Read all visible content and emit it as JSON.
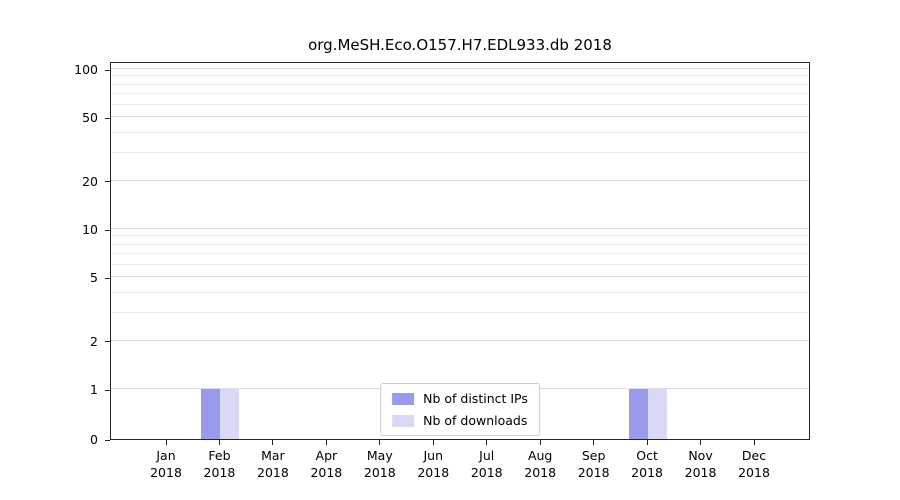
{
  "chart_data": {
    "type": "bar",
    "title": "org.MeSH.Eco.O157.H7.EDL933.db 2018",
    "categories": [
      "Jan",
      "Feb",
      "Mar",
      "Apr",
      "May",
      "Jun",
      "Jul",
      "Aug",
      "Sep",
      "Oct",
      "Nov",
      "Dec"
    ],
    "year": "2018",
    "series": [
      {
        "name": "Nb of distinct IPs",
        "color": "#9a9aec",
        "values": [
          0,
          1,
          0,
          0,
          0,
          0,
          0,
          0,
          0,
          1,
          0,
          0
        ]
      },
      {
        "name": "Nb of downloads",
        "color": "#d9d9f6",
        "values": [
          0,
          1,
          0,
          0,
          0,
          0,
          0,
          0,
          0,
          1,
          0,
          0
        ]
      }
    ],
    "yticks": [
      0,
      1,
      2,
      5,
      10,
      20,
      50,
      100
    ],
    "yscale": "symlog",
    "ylim": [
      0,
      110
    ],
    "xlabel": "",
    "ylabel": "",
    "grid": "horizontal major and minor",
    "legend_position": "bottom-center-inside"
  }
}
